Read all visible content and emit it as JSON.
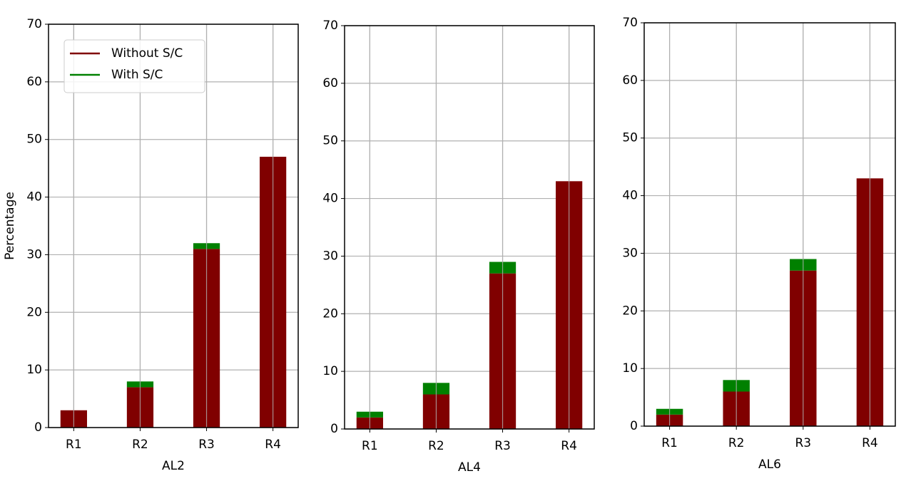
{
  "chart_data": [
    {
      "type": "stacked_bar",
      "xlabel": "AL2",
      "ylabel": "Percentage",
      "categories": [
        "R1",
        "R2",
        "R3",
        "R4"
      ],
      "series": [
        {
          "name": "Without S/C",
          "color": "#800000",
          "values": [
            3,
            7,
            31,
            47
          ]
        },
        {
          "name": "With S/C",
          "color": "#008000",
          "values": [
            0,
            1,
            1,
            0
          ]
        }
      ],
      "ylim": [
        0,
        70
      ],
      "yticks": [
        0,
        10,
        20,
        30,
        40,
        50,
        60,
        70
      ],
      "grid": true,
      "legend": "upper left"
    },
    {
      "type": "stacked_bar",
      "xlabel": "AL4",
      "categories": [
        "R1",
        "R2",
        "R3",
        "R4"
      ],
      "series": [
        {
          "color": "#800000",
          "values": [
            2,
            6,
            27,
            43
          ]
        },
        {
          "color": "#008000",
          "values": [
            1,
            2,
            2,
            0
          ]
        }
      ],
      "ylim": [
        0,
        70
      ],
      "yticks": [
        0,
        10,
        20,
        30,
        40,
        50,
        60,
        70
      ],
      "grid": true
    },
    {
      "type": "stacked_bar",
      "xlabel": "AL6",
      "categories": [
        "R1",
        "R2",
        "R3",
        "R4"
      ],
      "series": [
        {
          "color": "#800000",
          "values": [
            2,
            6,
            27,
            43
          ]
        },
        {
          "color": "#008000",
          "values": [
            1,
            2,
            2,
            0
          ]
        }
      ],
      "ylim": [
        0,
        70
      ],
      "yticks": [
        0,
        10,
        20,
        30,
        40,
        50,
        60,
        70
      ],
      "grid": true
    }
  ]
}
